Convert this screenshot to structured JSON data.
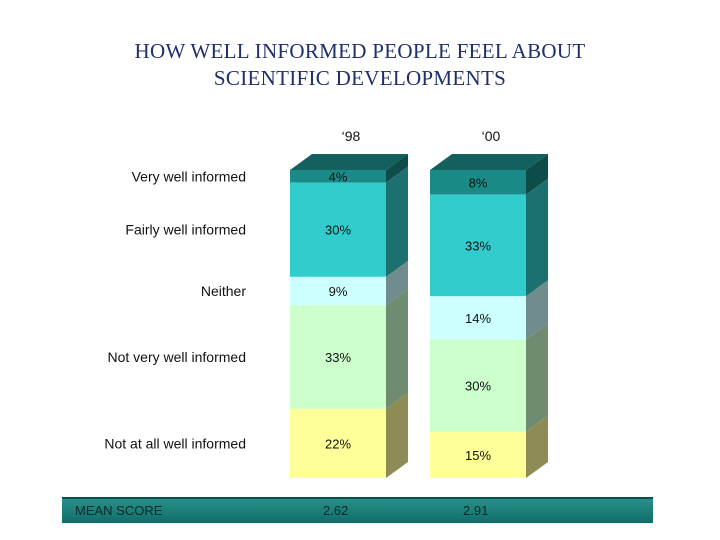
{
  "title": {
    "line1": "HOW WELL INFORMED PEOPLE FEEL ABOUT",
    "line2": "SCIENTIFIC DEVELOPMENTS"
  },
  "colors": {
    "very_well": "#1a8a86",
    "fairly_well": "#33cccc",
    "neither": "#ccffff",
    "not_very_well": "#ccffcc",
    "not_at_all": "#ffff99"
  },
  "chart_data": {
    "type": "bar",
    "stacked": true,
    "normalized": true,
    "categories": [
      "‘98",
      "‘00"
    ],
    "series": [
      {
        "name": "Very well informed",
        "values": [
          4,
          8
        ],
        "labels": [
          "4%",
          "8%"
        ]
      },
      {
        "name": "Fairly well informed",
        "values": [
          30,
          33
        ],
        "labels": [
          "30%",
          "33%"
        ]
      },
      {
        "name": "Neither",
        "values": [
          9,
          14
        ],
        "labels": [
          "9%",
          "14%"
        ]
      },
      {
        "name": "Not very well informed",
        "values": [
          33,
          30
        ],
        "labels": [
          "33%",
          "30%"
        ]
      },
      {
        "name": "Not at all well informed",
        "values": [
          22,
          15
        ],
        "labels": [
          "22%",
          "15%"
        ]
      }
    ],
    "legend_position": "left",
    "grid": false
  },
  "mean_score": {
    "label": "MEAN SCORE",
    "values": [
      "2.62",
      "2.91"
    ]
  }
}
